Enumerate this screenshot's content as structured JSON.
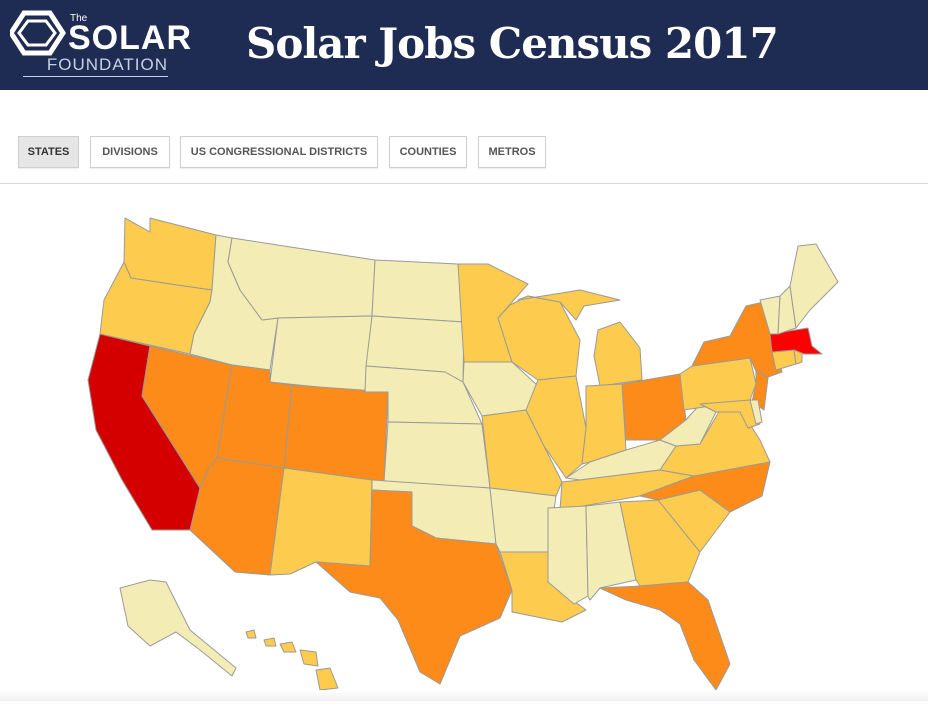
{
  "header": {
    "logo_the": "The",
    "logo_solar": "SOLAR",
    "logo_foundation": "FOUNDATION",
    "title": "Solar Jobs Census 2017"
  },
  "tabs": [
    {
      "label": "STATES",
      "active": true
    },
    {
      "label": "DIVISIONS",
      "active": false
    },
    {
      "label": "US CONGRESSIONAL DISTRICTS",
      "active": false
    },
    {
      "label": "COUNTIES",
      "active": false
    },
    {
      "label": "METROS",
      "active": false
    }
  ],
  "colors": {
    "header_bg": "#1e2b52",
    "tier1": "#f3ecb5",
    "tier2": "#fdcc4e",
    "tier3": "#fd8b19",
    "tier4": "#d40000",
    "tier5": "#ff0000",
    "border": "#9a9a9a"
  },
  "map": {
    "states": [
      {
        "name": "Washington",
        "abbr": "WA",
        "tier": 2
      },
      {
        "name": "Oregon",
        "abbr": "OR",
        "tier": 2
      },
      {
        "name": "California",
        "abbr": "CA",
        "tier": 4
      },
      {
        "name": "Nevada",
        "abbr": "NV",
        "tier": 3
      },
      {
        "name": "Idaho",
        "abbr": "ID",
        "tier": 1
      },
      {
        "name": "Montana",
        "abbr": "MT",
        "tier": 1
      },
      {
        "name": "Wyoming",
        "abbr": "WY",
        "tier": 1
      },
      {
        "name": "Utah",
        "abbr": "UT",
        "tier": 3
      },
      {
        "name": "Arizona",
        "abbr": "AZ",
        "tier": 3
      },
      {
        "name": "Colorado",
        "abbr": "CO",
        "tier": 3
      },
      {
        "name": "New Mexico",
        "abbr": "NM",
        "tier": 2
      },
      {
        "name": "North Dakota",
        "abbr": "ND",
        "tier": 1
      },
      {
        "name": "South Dakota",
        "abbr": "SD",
        "tier": 1
      },
      {
        "name": "Nebraska",
        "abbr": "NE",
        "tier": 1
      },
      {
        "name": "Kansas",
        "abbr": "KS",
        "tier": 1
      },
      {
        "name": "Oklahoma",
        "abbr": "OK",
        "tier": 1
      },
      {
        "name": "Texas",
        "abbr": "TX",
        "tier": 3
      },
      {
        "name": "Minnesota",
        "abbr": "MN",
        "tier": 2
      },
      {
        "name": "Iowa",
        "abbr": "IA",
        "tier": 1
      },
      {
        "name": "Missouri",
        "abbr": "MO",
        "tier": 2
      },
      {
        "name": "Arkansas",
        "abbr": "AR",
        "tier": 1
      },
      {
        "name": "Louisiana",
        "abbr": "LA",
        "tier": 2
      },
      {
        "name": "Wisconsin",
        "abbr": "WI",
        "tier": 2
      },
      {
        "name": "Illinois",
        "abbr": "IL",
        "tier": 2
      },
      {
        "name": "Michigan",
        "abbr": "MI",
        "tier": 2
      },
      {
        "name": "Indiana",
        "abbr": "IN",
        "tier": 2
      },
      {
        "name": "Ohio",
        "abbr": "OH",
        "tier": 3
      },
      {
        "name": "Kentucky",
        "abbr": "KY",
        "tier": 1
      },
      {
        "name": "Tennessee",
        "abbr": "TN",
        "tier": 2
      },
      {
        "name": "Mississippi",
        "abbr": "MS",
        "tier": 1
      },
      {
        "name": "Alabama",
        "abbr": "AL",
        "tier": 1
      },
      {
        "name": "Georgia",
        "abbr": "GA",
        "tier": 2
      },
      {
        "name": "Florida",
        "abbr": "FL",
        "tier": 3
      },
      {
        "name": "South Carolina",
        "abbr": "SC",
        "tier": 2
      },
      {
        "name": "North Carolina",
        "abbr": "NC",
        "tier": 3
      },
      {
        "name": "Virginia",
        "abbr": "VA",
        "tier": 2
      },
      {
        "name": "West Virginia",
        "abbr": "WV",
        "tier": 1
      },
      {
        "name": "Pennsylvania",
        "abbr": "PA",
        "tier": 2
      },
      {
        "name": "New York",
        "abbr": "NY",
        "tier": 3
      },
      {
        "name": "New Jersey",
        "abbr": "NJ",
        "tier": 3
      },
      {
        "name": "Maryland",
        "abbr": "MD",
        "tier": 2
      },
      {
        "name": "Delaware",
        "abbr": "DE",
        "tier": 1
      },
      {
        "name": "Connecticut",
        "abbr": "CT",
        "tier": 2
      },
      {
        "name": "Rhode Island",
        "abbr": "RI",
        "tier": 2
      },
      {
        "name": "Massachusetts",
        "abbr": "MA",
        "tier": 5
      },
      {
        "name": "Vermont",
        "abbr": "VT",
        "tier": 1
      },
      {
        "name": "New Hampshire",
        "abbr": "NH",
        "tier": 1
      },
      {
        "name": "Maine",
        "abbr": "ME",
        "tier": 1
      },
      {
        "name": "Alaska",
        "abbr": "AK",
        "tier": 1
      },
      {
        "name": "Hawaii",
        "abbr": "HI",
        "tier": 2
      }
    ]
  }
}
